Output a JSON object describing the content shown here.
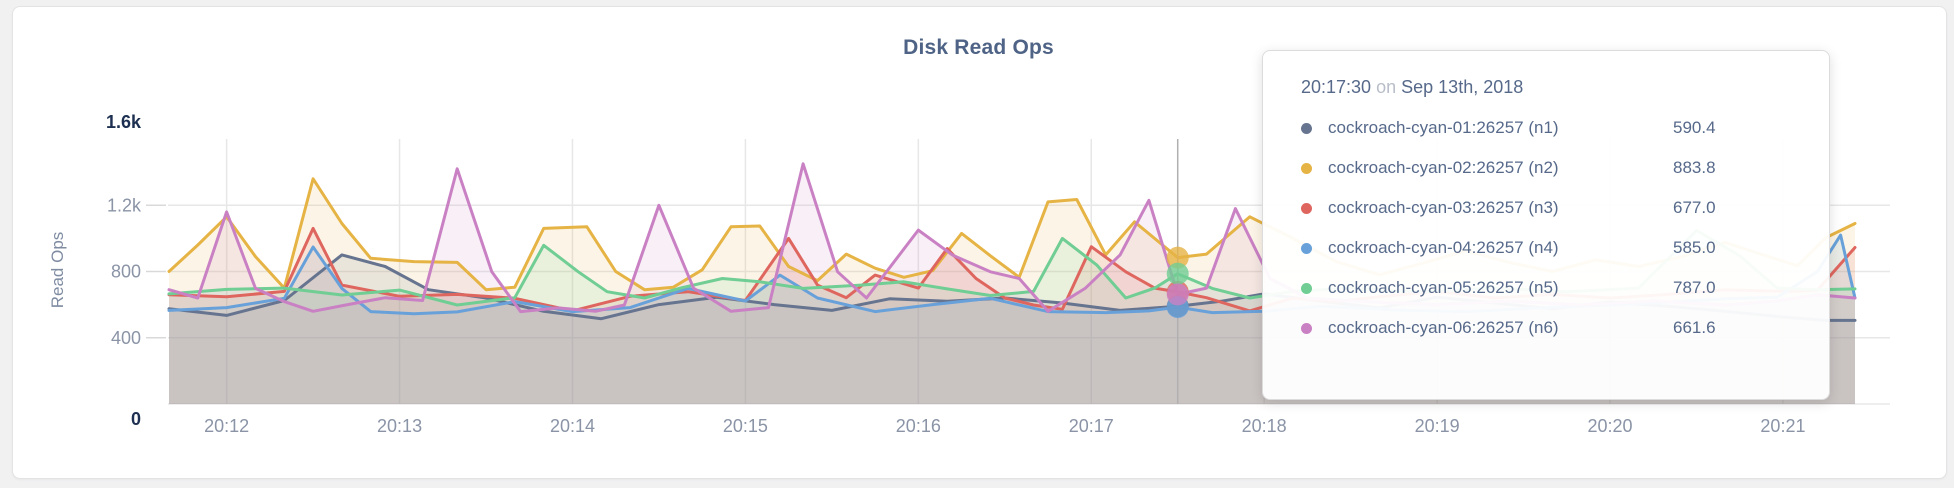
{
  "chart": {
    "title": "Disk Read Ops",
    "y_axis_label": "Read Ops"
  },
  "tooltip": {
    "time": "20:17:30",
    "separator": "on",
    "date": "Sep 13th, 2018",
    "rows": [
      {
        "label": "cockroach-cyan-01:26257 (n1)",
        "value": "590.4",
        "color": "#66748f"
      },
      {
        "label": "cockroach-cyan-02:26257 (n2)",
        "value": "883.8",
        "color": "#e6b345"
      },
      {
        "label": "cockroach-cyan-03:26257 (n3)",
        "value": "677.0",
        "color": "#de665f"
      },
      {
        "label": "cockroach-cyan-04:26257 (n4)",
        "value": "585.0",
        "color": "#68a1d9"
      },
      {
        "label": "cockroach-cyan-05:26257 (n5)",
        "value": "787.0",
        "color": "#70cd93"
      },
      {
        "label": "cockroach-cyan-06:26257 (n6)",
        "value": "661.6",
        "color": "#c981c4"
      }
    ]
  },
  "colors": {
    "grid": "#e7e7e7",
    "axis_tick_text": "#8a94a6",
    "axis_tick_emphasis": "#1d3051",
    "hover_line": "#b0b0b0",
    "plot_bottom_line": "#dcdcdc",
    "tick_dash": "#d9d9d9"
  },
  "chart_data": {
    "type": "area",
    "title": "Disk Read Ops",
    "ylabel": "Read Ops",
    "ylim": [
      0,
      1600
    ],
    "grid": true,
    "legend_position": "tooltip-overlay",
    "y_ticks": [
      {
        "value": 0,
        "label": "0",
        "emphasis": true
      },
      {
        "value": 400,
        "label": "400"
      },
      {
        "value": 800,
        "label": "800"
      },
      {
        "value": 1200,
        "label": "1.2k"
      },
      {
        "value": 1600,
        "label": "1.6k",
        "emphasis": true
      }
    ],
    "x_ticks": [
      {
        "t": 20,
        "label": "20:12"
      },
      {
        "t": 80,
        "label": "20:13"
      },
      {
        "t": 140,
        "label": "20:14"
      },
      {
        "t": 200,
        "label": "20:15"
      },
      {
        "t": 260,
        "label": "20:16"
      },
      {
        "t": 320,
        "label": "20:17"
      },
      {
        "t": 380,
        "label": "20:18"
      },
      {
        "t": 440,
        "label": "20:19"
      },
      {
        "t": 500,
        "label": "20:20"
      },
      {
        "t": 560,
        "label": "20:21"
      }
    ],
    "x_domain_seconds": [
      0,
      585
    ],
    "hover_point": {
      "t": 350,
      "time": "20:17:30",
      "date": "Sep 13th, 2018"
    },
    "series": [
      {
        "name": "cockroach-cyan-01:26257 (n1)",
        "color": "#66748f",
        "value_at_hover": 590.4,
        "points": [
          [
            0,
            575
          ],
          [
            20,
            535
          ],
          [
            40,
            625
          ],
          [
            60,
            900
          ],
          [
            75,
            830
          ],
          [
            90,
            690
          ],
          [
            110,
            640
          ],
          [
            130,
            560
          ],
          [
            150,
            515
          ],
          [
            170,
            600
          ],
          [
            190,
            645
          ],
          [
            210,
            600
          ],
          [
            230,
            565
          ],
          [
            250,
            635
          ],
          [
            270,
            620
          ],
          [
            290,
            640
          ],
          [
            310,
            610
          ],
          [
            330,
            565
          ],
          [
            350,
            590.4
          ],
          [
            365,
            620
          ],
          [
            380,
            665
          ],
          [
            400,
            620
          ],
          [
            420,
            580
          ],
          [
            440,
            645
          ],
          [
            460,
            610
          ],
          [
            480,
            575
          ],
          [
            500,
            615
          ],
          [
            520,
            590
          ],
          [
            540,
            560
          ],
          [
            560,
            525
          ],
          [
            575,
            505
          ],
          [
            585,
            505
          ]
        ]
      },
      {
        "name": "cockroach-cyan-02:26257 (n2)",
        "color": "#e6b345",
        "value_at_hover": 883.8,
        "points": [
          [
            0,
            800
          ],
          [
            10,
            960
          ],
          [
            20,
            1130
          ],
          [
            30,
            890
          ],
          [
            40,
            700
          ],
          [
            50,
            1360
          ],
          [
            60,
            1090
          ],
          [
            70,
            880
          ],
          [
            85,
            860
          ],
          [
            100,
            855
          ],
          [
            110,
            690
          ],
          [
            120,
            705
          ],
          [
            130,
            1060
          ],
          [
            145,
            1070
          ],
          [
            155,
            800
          ],
          [
            165,
            690
          ],
          [
            175,
            705
          ],
          [
            185,
            810
          ],
          [
            195,
            1070
          ],
          [
            205,
            1075
          ],
          [
            215,
            830
          ],
          [
            225,
            745
          ],
          [
            235,
            905
          ],
          [
            245,
            820
          ],
          [
            255,
            765
          ],
          [
            265,
            805
          ],
          [
            275,
            1030
          ],
          [
            285,
            895
          ],
          [
            295,
            765
          ],
          [
            305,
            1220
          ],
          [
            315,
            1235
          ],
          [
            325,
            900
          ],
          [
            335,
            1100
          ],
          [
            350,
            883.8
          ],
          [
            360,
            905
          ],
          [
            375,
            1130
          ],
          [
            390,
            1000
          ],
          [
            405,
            860
          ],
          [
            420,
            780
          ],
          [
            435,
            850
          ],
          [
            450,
            925
          ],
          [
            465,
            855
          ],
          [
            480,
            800
          ],
          [
            495,
            870
          ],
          [
            510,
            830
          ],
          [
            525,
            890
          ],
          [
            540,
            975
          ],
          [
            555,
            890
          ],
          [
            565,
            835
          ],
          [
            575,
            1005
          ],
          [
            585,
            1090
          ]
        ]
      },
      {
        "name": "cockroach-cyan-03:26257 (n3)",
        "color": "#de665f",
        "value_at_hover": 677.0,
        "points": [
          [
            0,
            660
          ],
          [
            20,
            648
          ],
          [
            40,
            680
          ],
          [
            50,
            1060
          ],
          [
            60,
            718
          ],
          [
            80,
            650
          ],
          [
            100,
            662
          ],
          [
            120,
            638
          ],
          [
            140,
            562
          ],
          [
            160,
            650
          ],
          [
            180,
            678
          ],
          [
            200,
            625
          ],
          [
            215,
            1000
          ],
          [
            225,
            718
          ],
          [
            235,
            642
          ],
          [
            245,
            778
          ],
          [
            260,
            700
          ],
          [
            270,
            938
          ],
          [
            280,
            758
          ],
          [
            290,
            640
          ],
          [
            300,
            598
          ],
          [
            310,
            572
          ],
          [
            320,
            950
          ],
          [
            332,
            798
          ],
          [
            342,
            700
          ],
          [
            350,
            677
          ],
          [
            360,
            642
          ],
          [
            375,
            562
          ],
          [
            390,
            640
          ],
          [
            405,
            618
          ],
          [
            420,
            648
          ],
          [
            440,
            680
          ],
          [
            460,
            640
          ],
          [
            480,
            662
          ],
          [
            500,
            640
          ],
          [
            520,
            662
          ],
          [
            540,
            690
          ],
          [
            560,
            680
          ],
          [
            572,
            688
          ],
          [
            585,
            945
          ]
        ]
      },
      {
        "name": "cockroach-cyan-04:26257 (n4)",
        "color": "#68a1d9",
        "value_at_hover": 585.0,
        "points": [
          [
            0,
            565
          ],
          [
            20,
            582
          ],
          [
            40,
            638
          ],
          [
            50,
            948
          ],
          [
            60,
            698
          ],
          [
            70,
            558
          ],
          [
            85,
            545
          ],
          [
            100,
            556
          ],
          [
            120,
            618
          ],
          [
            140,
            558
          ],
          [
            160,
            582
          ],
          [
            180,
            698
          ],
          [
            200,
            622
          ],
          [
            212,
            778
          ],
          [
            225,
            640
          ],
          [
            245,
            558
          ],
          [
            265,
            600
          ],
          [
            285,
            638
          ],
          [
            305,
            558
          ],
          [
            325,
            552
          ],
          [
            340,
            562
          ],
          [
            350,
            585
          ],
          [
            362,
            552
          ],
          [
            380,
            560
          ],
          [
            400,
            590
          ],
          [
            425,
            568
          ],
          [
            450,
            558
          ],
          [
            475,
            580
          ],
          [
            500,
            598
          ],
          [
            520,
            615
          ],
          [
            540,
            635
          ],
          [
            558,
            645
          ],
          [
            572,
            800
          ],
          [
            580,
            1020
          ],
          [
            585,
            640
          ]
        ]
      },
      {
        "name": "cockroach-cyan-05:26257 (n5)",
        "color": "#70cd93",
        "value_at_hover": 787.0,
        "points": [
          [
            0,
            665
          ],
          [
            20,
            692
          ],
          [
            40,
            700
          ],
          [
            60,
            658
          ],
          [
            80,
            688
          ],
          [
            100,
            598
          ],
          [
            120,
            642
          ],
          [
            130,
            958
          ],
          [
            142,
            798
          ],
          [
            152,
            678
          ],
          [
            165,
            640
          ],
          [
            178,
            702
          ],
          [
            192,
            758
          ],
          [
            205,
            738
          ],
          [
            220,
            698
          ],
          [
            240,
            718
          ],
          [
            255,
            738
          ],
          [
            270,
            695
          ],
          [
            285,
            655
          ],
          [
            300,
            680
          ],
          [
            310,
            1000
          ],
          [
            322,
            838
          ],
          [
            332,
            640
          ],
          [
            342,
            700
          ],
          [
            350,
            787
          ],
          [
            362,
            698
          ],
          [
            375,
            640
          ],
          [
            390,
            680
          ],
          [
            410,
            700
          ],
          [
            435,
            678
          ],
          [
            460,
            700
          ],
          [
            485,
            678
          ],
          [
            510,
            700
          ],
          [
            530,
            1048
          ],
          [
            545,
            895
          ],
          [
            558,
            700
          ],
          [
            572,
            690
          ],
          [
            585,
            695
          ]
        ]
      },
      {
        "name": "cockroach-cyan-06:26257 (n6)",
        "color": "#c981c4",
        "value_at_hover": 661.6,
        "points": [
          [
            0,
            690
          ],
          [
            10,
            640
          ],
          [
            20,
            1160
          ],
          [
            30,
            698
          ],
          [
            40,
            618
          ],
          [
            50,
            560
          ],
          [
            62,
            600
          ],
          [
            75,
            642
          ],
          [
            88,
            625
          ],
          [
            100,
            1420
          ],
          [
            112,
            798
          ],
          [
            122,
            558
          ],
          [
            135,
            580
          ],
          [
            148,
            560
          ],
          [
            158,
            598
          ],
          [
            170,
            1200
          ],
          [
            182,
            700
          ],
          [
            195,
            560
          ],
          [
            208,
            582
          ],
          [
            220,
            1450
          ],
          [
            232,
            798
          ],
          [
            242,
            640
          ],
          [
            260,
            1050
          ],
          [
            272,
            898
          ],
          [
            285,
            798
          ],
          [
            295,
            758
          ],
          [
            305,
            560
          ],
          [
            318,
            700
          ],
          [
            330,
            900
          ],
          [
            340,
            1230
          ],
          [
            350,
            661.6
          ],
          [
            360,
            700
          ],
          [
            370,
            1180
          ],
          [
            382,
            758
          ],
          [
            395,
            640
          ],
          [
            415,
            618
          ],
          [
            440,
            600
          ],
          [
            465,
            622
          ],
          [
            490,
            598
          ],
          [
            515,
            622
          ],
          [
            540,
            598
          ],
          [
            558,
            622
          ],
          [
            572,
            660
          ],
          [
            585,
            640
          ]
        ]
      }
    ]
  }
}
